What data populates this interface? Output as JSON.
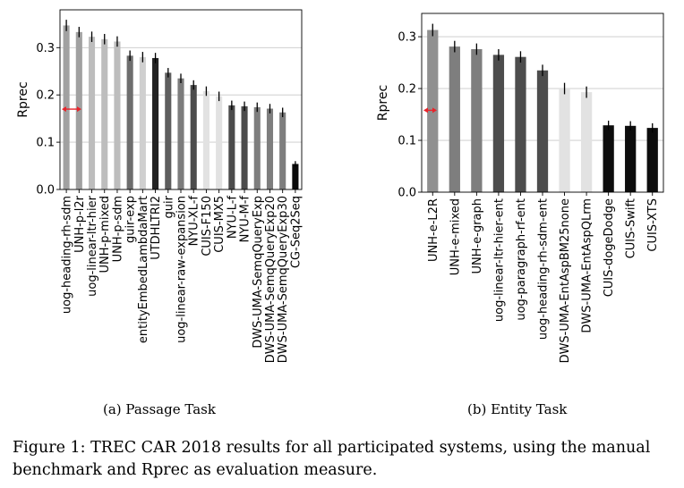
{
  "figure": {
    "caption_label": "Figure 1:",
    "caption_text": "TREC CAR 2018 results for all participated systems, using the manual benchmark and Rprec as evaluation measure."
  },
  "chart_data": [
    {
      "type": "bar",
      "subcaption": "(a) Passage Task",
      "ylabel": "Rprec",
      "ylim": [
        0,
        0.38
      ],
      "yticks": [
        "0.0",
        "0.1",
        "0.2",
        "0.3"
      ],
      "grid": true,
      "categories": [
        "uog-heading-rh-sdm",
        "UNH-p-l2r",
        "uog-linear-ltr-hier",
        "UNH-p-mixed",
        "UNH-p-sdm",
        "guir-exp",
        "entityEmbedLambdaMart",
        "UTDHLTRI2",
        "guir",
        "uog-linear-raw-expansion",
        "NYU-XL-f",
        "CUIS-F150",
        "CUIS-MX5",
        "NYU-L-f",
        "NYU-M-f",
        "DWS-UMA-SemqQueryExp",
        "DWS-UMA-SemqQueryExp20",
        "DWS-UMA-SemqQueryExp30",
        "CG-Seq2Seq"
      ],
      "values": [
        0.347,
        0.333,
        0.323,
        0.318,
        0.313,
        0.283,
        0.28,
        0.278,
        0.247,
        0.235,
        0.221,
        0.208,
        0.197,
        0.178,
        0.176,
        0.174,
        0.171,
        0.163,
        0.054
      ],
      "errors": [
        0.012,
        0.011,
        0.011,
        0.011,
        0.011,
        0.011,
        0.011,
        0.011,
        0.01,
        0.01,
        0.01,
        0.01,
        0.01,
        0.01,
        0.01,
        0.01,
        0.01,
        0.01,
        0.006
      ],
      "colors": [
        "#a1a1a1",
        "#a1a1a1",
        "#bdbdbd",
        "#bdbdbd",
        "#bdbdbd",
        "#6e6e6e",
        "#cfcfcf",
        "#222222",
        "#5e5e5e",
        "#7c7c7c",
        "#4c4c4c",
        "#e2e2e2",
        "#e2e2e2",
        "#4c4c4c",
        "#4c4c4c",
        "#7e7e7e",
        "#7e7e7e",
        "#7e7e7e",
        "#0a0a0a"
      ],
      "arrow_value": 0.17
    },
    {
      "type": "bar",
      "subcaption": "(b) Entity Task",
      "ylabel": "Rprec",
      "ylim": [
        0,
        0.345
      ],
      "yticks": [
        "0.0",
        "0.1",
        "0.2",
        "0.3"
      ],
      "grid": true,
      "categories": [
        "UNH-e-L2R",
        "UNH-e-mixed",
        "UNH-e-graph",
        "uog-linear-ltr-hier-ent",
        "uog-paragraph-rf-ent",
        "uog-heading-rh-sdm-ent",
        "DWS-UMA-EntAspBM25none",
        "DWS-UMA-EntAspQLrm",
        "CUIS-dogeDodge",
        "CUIS-Swift",
        "CUIS-XTS"
      ],
      "values": [
        0.313,
        0.281,
        0.276,
        0.265,
        0.261,
        0.235,
        0.2,
        0.193,
        0.129,
        0.128,
        0.124
      ],
      "errors": [
        0.012,
        0.011,
        0.011,
        0.011,
        0.011,
        0.011,
        0.011,
        0.011,
        0.009,
        0.009,
        0.009
      ],
      "colors": [
        "#909090",
        "#7e7e7e",
        "#7e7e7e",
        "#4d4d4d",
        "#4d4d4d",
        "#4d4d4d",
        "#e2e2e2",
        "#e2e2e2",
        "#0d0d0d",
        "#0d0d0d",
        "#0d0d0d"
      ],
      "arrow_value": 0.158
    }
  ]
}
